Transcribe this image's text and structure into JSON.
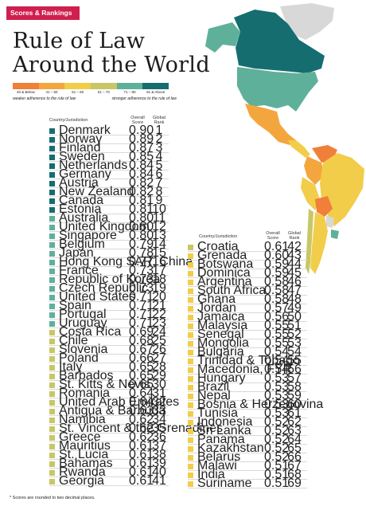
{
  "header": {
    "tag": "Scores & Rankings",
    "title_line1": "Rule of Law",
    "title_line2": "Around the World"
  },
  "legend": {
    "ranges": [
      "40 & Below",
      "41 – 50",
      "51 – 60",
      "61 – 70",
      "71 – 80",
      "81 & Above"
    ],
    "colors": [
      "#f07f3a",
      "#f4a63e",
      "#f2cd49",
      "#c7c766",
      "#5fb09a",
      "#156d70"
    ],
    "weaker_label": "weaker adherence to the rule of law",
    "stronger_label": "stronger adherence to the rule of law"
  },
  "table_headers": {
    "country": "Country/Jurisdiction",
    "score": "Overall Score",
    "rank": "Global Rank"
  },
  "footnote": "* Scores are rounded to two decimal places.",
  "chart_data": {
    "type": "table",
    "title": "Rule of Law Around the World",
    "columns": [
      "Country/Jurisdiction",
      "Overall Score",
      "Global Rank"
    ],
    "rows": [
      {
        "country": "Denmark",
        "score": "0.90",
        "rank": "1",
        "color": "#156d70"
      },
      {
        "country": "Norway",
        "score": "0.89",
        "rank": "2",
        "color": "#156d70"
      },
      {
        "country": "Finland",
        "score": "0.87",
        "rank": "3",
        "color": "#156d70"
      },
      {
        "country": "Sweden",
        "score": "0.85",
        "rank": "4",
        "color": "#156d70"
      },
      {
        "country": "Netherlands",
        "score": "0.84",
        "rank": "5",
        "color": "#156d70"
      },
      {
        "country": "Germany",
        "score": "0.84",
        "rank": "6",
        "color": "#156d70"
      },
      {
        "country": "Austria",
        "score": "0.82",
        "rank": "7",
        "color": "#156d70"
      },
      {
        "country": "New Zealand",
        "score": "0.82",
        "rank": "8",
        "color": "#156d70"
      },
      {
        "country": "Canada",
        "score": "0.81",
        "rank": "9",
        "color": "#156d70"
      },
      {
        "country": "Estonia",
        "score": "0.81",
        "rank": "10",
        "color": "#156d70"
      },
      {
        "country": "Australia",
        "score": "0.80",
        "rank": "11",
        "color": "#5fb09a"
      },
      {
        "country": "United Kingdom",
        "score": "0.80",
        "rank": "12",
        "color": "#5fb09a"
      },
      {
        "country": "Singapore",
        "score": "0.80",
        "rank": "13",
        "color": "#5fb09a"
      },
      {
        "country": "Belgium",
        "score": "0.79",
        "rank": "14",
        "color": "#5fb09a"
      },
      {
        "country": "Japan",
        "score": "0.78",
        "rank": "15",
        "color": "#5fb09a"
      },
      {
        "country": "Hong Kong SAR, China",
        "score": "0.77",
        "rank": "16",
        "color": "#5fb09a"
      },
      {
        "country": "France",
        "score": "0.73",
        "rank": "17",
        "color": "#5fb09a"
      },
      {
        "country": "Republic of Korea",
        "score": "0.73",
        "rank": "18",
        "color": "#5fb09a"
      },
      {
        "country": "Czech Republic",
        "score": "0.73",
        "rank": "19",
        "color": "#5fb09a"
      },
      {
        "country": "United States",
        "score": "0.71",
        "rank": "20",
        "color": "#5fb09a"
      },
      {
        "country": "Spain",
        "score": "0.71",
        "rank": "21",
        "color": "#5fb09a"
      },
      {
        "country": "Portugal",
        "score": "0.71",
        "rank": "22",
        "color": "#5fb09a"
      },
      {
        "country": "Uruguay",
        "score": "0.71",
        "rank": "23",
        "color": "#5fb09a"
      },
      {
        "country": "Costa Rica",
        "score": "0.69",
        "rank": "24",
        "color": "#c7c766"
      },
      {
        "country": "Chile",
        "score": "0.68",
        "rank": "25",
        "color": "#c7c766"
      },
      {
        "country": "Slovenia",
        "score": "0.67",
        "rank": "26",
        "color": "#c7c766"
      },
      {
        "country": "Poland",
        "score": "0.66",
        "rank": "27",
        "color": "#c7c766"
      },
      {
        "country": "Italy",
        "score": "0.65",
        "rank": "28",
        "color": "#c7c766"
      },
      {
        "country": "Barbados",
        "score": "0.65",
        "rank": "29",
        "color": "#c7c766"
      },
      {
        "country": "St. Kitts & Nevis",
        "score": "0.65",
        "rank": "30",
        "color": "#c7c766"
      },
      {
        "country": "Romania",
        "score": "0.64",
        "rank": "31",
        "color": "#c7c766"
      },
      {
        "country": "United Arab Emirates",
        "score": "0.64",
        "rank": "32",
        "color": "#c7c766"
      },
      {
        "country": "Antigua & Barbuda",
        "score": "0.63",
        "rank": "33",
        "color": "#c7c766"
      },
      {
        "country": "Namibia",
        "score": "0.62",
        "rank": "34",
        "color": "#c7c766"
      },
      {
        "country": "St. Vincent & the Grenadines",
        "score": "0.62",
        "rank": "35",
        "color": "#c7c766"
      },
      {
        "country": "Greece",
        "score": "0.62",
        "rank": "36",
        "color": "#c7c766"
      },
      {
        "country": "Mauritius",
        "score": "0.61",
        "rank": "37",
        "color": "#c7c766"
      },
      {
        "country": "St. Lucia",
        "score": "0.61",
        "rank": "38",
        "color": "#c7c766"
      },
      {
        "country": "Bahamas",
        "score": "0.61",
        "rank": "39",
        "color": "#c7c766"
      },
      {
        "country": "Rwanda",
        "score": "0.61",
        "rank": "40",
        "color": "#c7c766"
      },
      {
        "country": "Georgia",
        "score": "0.61",
        "rank": "41",
        "color": "#c7c766"
      },
      {
        "country": "Croatia",
        "score": "0.61",
        "rank": "42",
        "color": "#c7c766"
      },
      {
        "country": "Grenada",
        "score": "0.60",
        "rank": "43",
        "color": "#f2cd49"
      },
      {
        "country": "Botswana",
        "score": "0.59",
        "rank": "44",
        "color": "#f2cd49"
      },
      {
        "country": "Dominica",
        "score": "0.59",
        "rank": "45",
        "color": "#f2cd49"
      },
      {
        "country": "Argentina",
        "score": "0.58",
        "rank": "46",
        "color": "#f2cd49"
      },
      {
        "country": "South Africa",
        "score": "0.58",
        "rank": "47",
        "color": "#f2cd49"
      },
      {
        "country": "Ghana",
        "score": "0.58",
        "rank": "48",
        "color": "#f2cd49"
      },
      {
        "country": "Jordan",
        "score": "0.57",
        "rank": "49",
        "color": "#f2cd49"
      },
      {
        "country": "Jamaica",
        "score": "0.56",
        "rank": "50",
        "color": "#f2cd49"
      },
      {
        "country": "Malaysia",
        "score": "0.55",
        "rank": "51",
        "color": "#f2cd49"
      },
      {
        "country": "Senegal",
        "score": "0.55",
        "rank": "52",
        "color": "#f2cd49"
      },
      {
        "country": "Mongolia",
        "score": "0.55",
        "rank": "53",
        "color": "#f2cd49"
      },
      {
        "country": "Bulgaria",
        "score": "0.54",
        "rank": "54",
        "color": "#f2cd49"
      },
      {
        "country": "Trinidad & Tobago",
        "score": "0.54",
        "rank": "55",
        "color": "#f2cd49"
      },
      {
        "country": "Macedonia, FYR",
        "score": "0.54",
        "rank": "56",
        "color": "#f2cd49"
      },
      {
        "country": "Hungary",
        "score": "0.53",
        "rank": "57",
        "color": "#f2cd49"
      },
      {
        "country": "Brazil",
        "score": "0.53",
        "rank": "58",
        "color": "#f2cd49"
      },
      {
        "country": "Nepal",
        "score": "0.53",
        "rank": "59",
        "color": "#f2cd49"
      },
      {
        "country": "Bosnia & Herzegovina",
        "score": "0.53",
        "rank": "60",
        "color": "#f2cd49"
      },
      {
        "country": "Tunisia",
        "score": "0.53",
        "rank": "61",
        "color": "#f2cd49"
      },
      {
        "country": "Indonesia",
        "score": "0.52",
        "rank": "62",
        "color": "#f2cd49"
      },
      {
        "country": "Sri Lanka",
        "score": "0.52",
        "rank": "63",
        "color": "#f2cd49"
      },
      {
        "country": "Panama",
        "score": "0.52",
        "rank": "64",
        "color": "#f2cd49"
      },
      {
        "country": "Kazakhstan",
        "score": "0.52",
        "rank": "65",
        "color": "#f2cd49"
      },
      {
        "country": "Belarus",
        "score": "0.52",
        "rank": "66",
        "color": "#f2cd49"
      },
      {
        "country": "Malawi",
        "score": "0.51",
        "rank": "67",
        "color": "#f2cd49"
      },
      {
        "country": "India",
        "score": "0.51",
        "rank": "68",
        "color": "#f2cd49"
      },
      {
        "country": "Suriname",
        "score": "0.51",
        "rank": "69",
        "color": "#f2cd49"
      }
    ]
  }
}
